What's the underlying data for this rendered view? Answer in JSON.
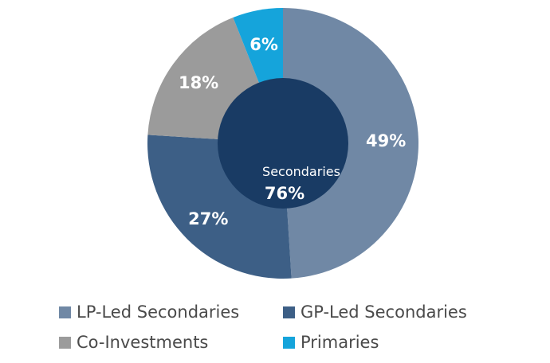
{
  "chart_data": {
    "type": "pie",
    "slices": [
      {
        "label": "LP-Led Secondaries",
        "value": 49,
        "display": "49%",
        "color": "#7088a5"
      },
      {
        "label": "GP-Led Secondaries",
        "value": 27,
        "display": "27%",
        "color": "#3d5f86"
      },
      {
        "label": "Co-Investments",
        "value": 18,
        "display": "18%",
        "color": "#9b9b9b"
      },
      {
        "label": "Primaries",
        "value": 6,
        "display": "6%",
        "color": "#15a4db"
      }
    ],
    "inner": {
      "label": "Secondaries",
      "value": 76,
      "display": "76%",
      "color": "#193b64"
    },
    "legend_position": "bottom"
  }
}
